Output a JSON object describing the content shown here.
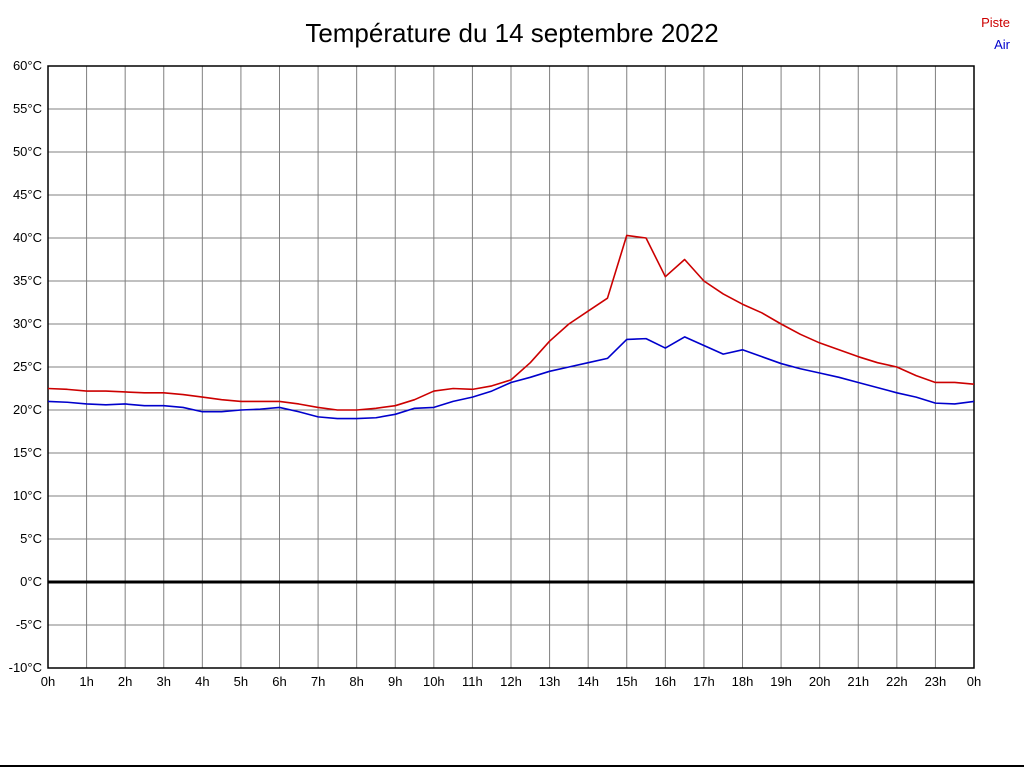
{
  "title": "Température du 14 septembre 2022",
  "legend": {
    "piste": "Piste",
    "air": "Air"
  },
  "colors": {
    "piste": "#cc0000",
    "air": "#0000cc",
    "grid": "#808080",
    "axis": "#000000",
    "zero_line": "#000000",
    "text": "#000000"
  },
  "chart_data": {
    "type": "line",
    "title": "Température du 14 septembre 2022",
    "xlabel": "",
    "ylabel": "",
    "x_unit": "hours",
    "x_range": [
      0,
      24
    ],
    "y_range": [
      -10,
      60
    ],
    "x_start": 0,
    "x_step": 0.5,
    "grid": true,
    "legend_position": "top-right",
    "x_tick_values": [
      0,
      1,
      2,
      3,
      4,
      5,
      6,
      7,
      8,
      9,
      10,
      11,
      12,
      13,
      14,
      15,
      16,
      17,
      18,
      19,
      20,
      21,
      22,
      23,
      24
    ],
    "x_tick_labels": [
      "0h",
      "1h",
      "2h",
      "3h",
      "4h",
      "5h",
      "6h",
      "7h",
      "8h",
      "9h",
      "10h",
      "11h",
      "12h",
      "13h",
      "14h",
      "15h",
      "16h",
      "17h",
      "18h",
      "19h",
      "20h",
      "21h",
      "22h",
      "23h",
      "0h"
    ],
    "y_tick_values": [
      60,
      55,
      50,
      45,
      40,
      35,
      30,
      25,
      20,
      15,
      10,
      5,
      0,
      -5,
      -10
    ],
    "y_tick_labels": [
      "60°C",
      "55°C",
      "50°C",
      "45°C",
      "40°C",
      "35°C",
      "30°C",
      "25°C",
      "20°C",
      "15°C",
      "10°C",
      "5°C",
      "0°C",
      "-5°C",
      "-10°C"
    ],
    "series": [
      {
        "name": "Piste",
        "color": "#cc0000",
        "values": [
          22.5,
          22.4,
          22.2,
          22.2,
          22.1,
          22.0,
          22.0,
          21.8,
          21.5,
          21.2,
          21.0,
          21.0,
          21.0,
          20.7,
          20.3,
          20.0,
          20.0,
          20.2,
          20.5,
          21.2,
          22.2,
          22.5,
          22.4,
          22.8,
          23.5,
          25.5,
          28.0,
          30.0,
          31.5,
          33.0,
          40.3,
          40.0,
          35.5,
          37.5,
          35.0,
          33.5,
          32.3,
          31.3,
          30.0,
          28.8,
          27.8,
          27.0,
          26.2,
          25.5,
          25.0,
          24.0,
          23.2,
          23.2,
          23.0
        ]
      },
      {
        "name": "Air",
        "color": "#0000cc",
        "values": [
          21.0,
          20.9,
          20.7,
          20.6,
          20.7,
          20.5,
          20.5,
          20.3,
          19.8,
          19.8,
          20.0,
          20.1,
          20.3,
          19.8,
          19.2,
          19.0,
          19.0,
          19.1,
          19.5,
          20.2,
          20.3,
          21.0,
          21.5,
          22.2,
          23.2,
          23.8,
          24.5,
          25.0,
          25.5,
          26.0,
          28.2,
          28.3,
          27.2,
          28.5,
          27.5,
          26.5,
          27.0,
          26.2,
          25.4,
          24.8,
          24.3,
          23.8,
          23.2,
          22.6,
          22.0,
          21.5,
          20.8,
          20.7,
          21.0
        ]
      }
    ]
  }
}
